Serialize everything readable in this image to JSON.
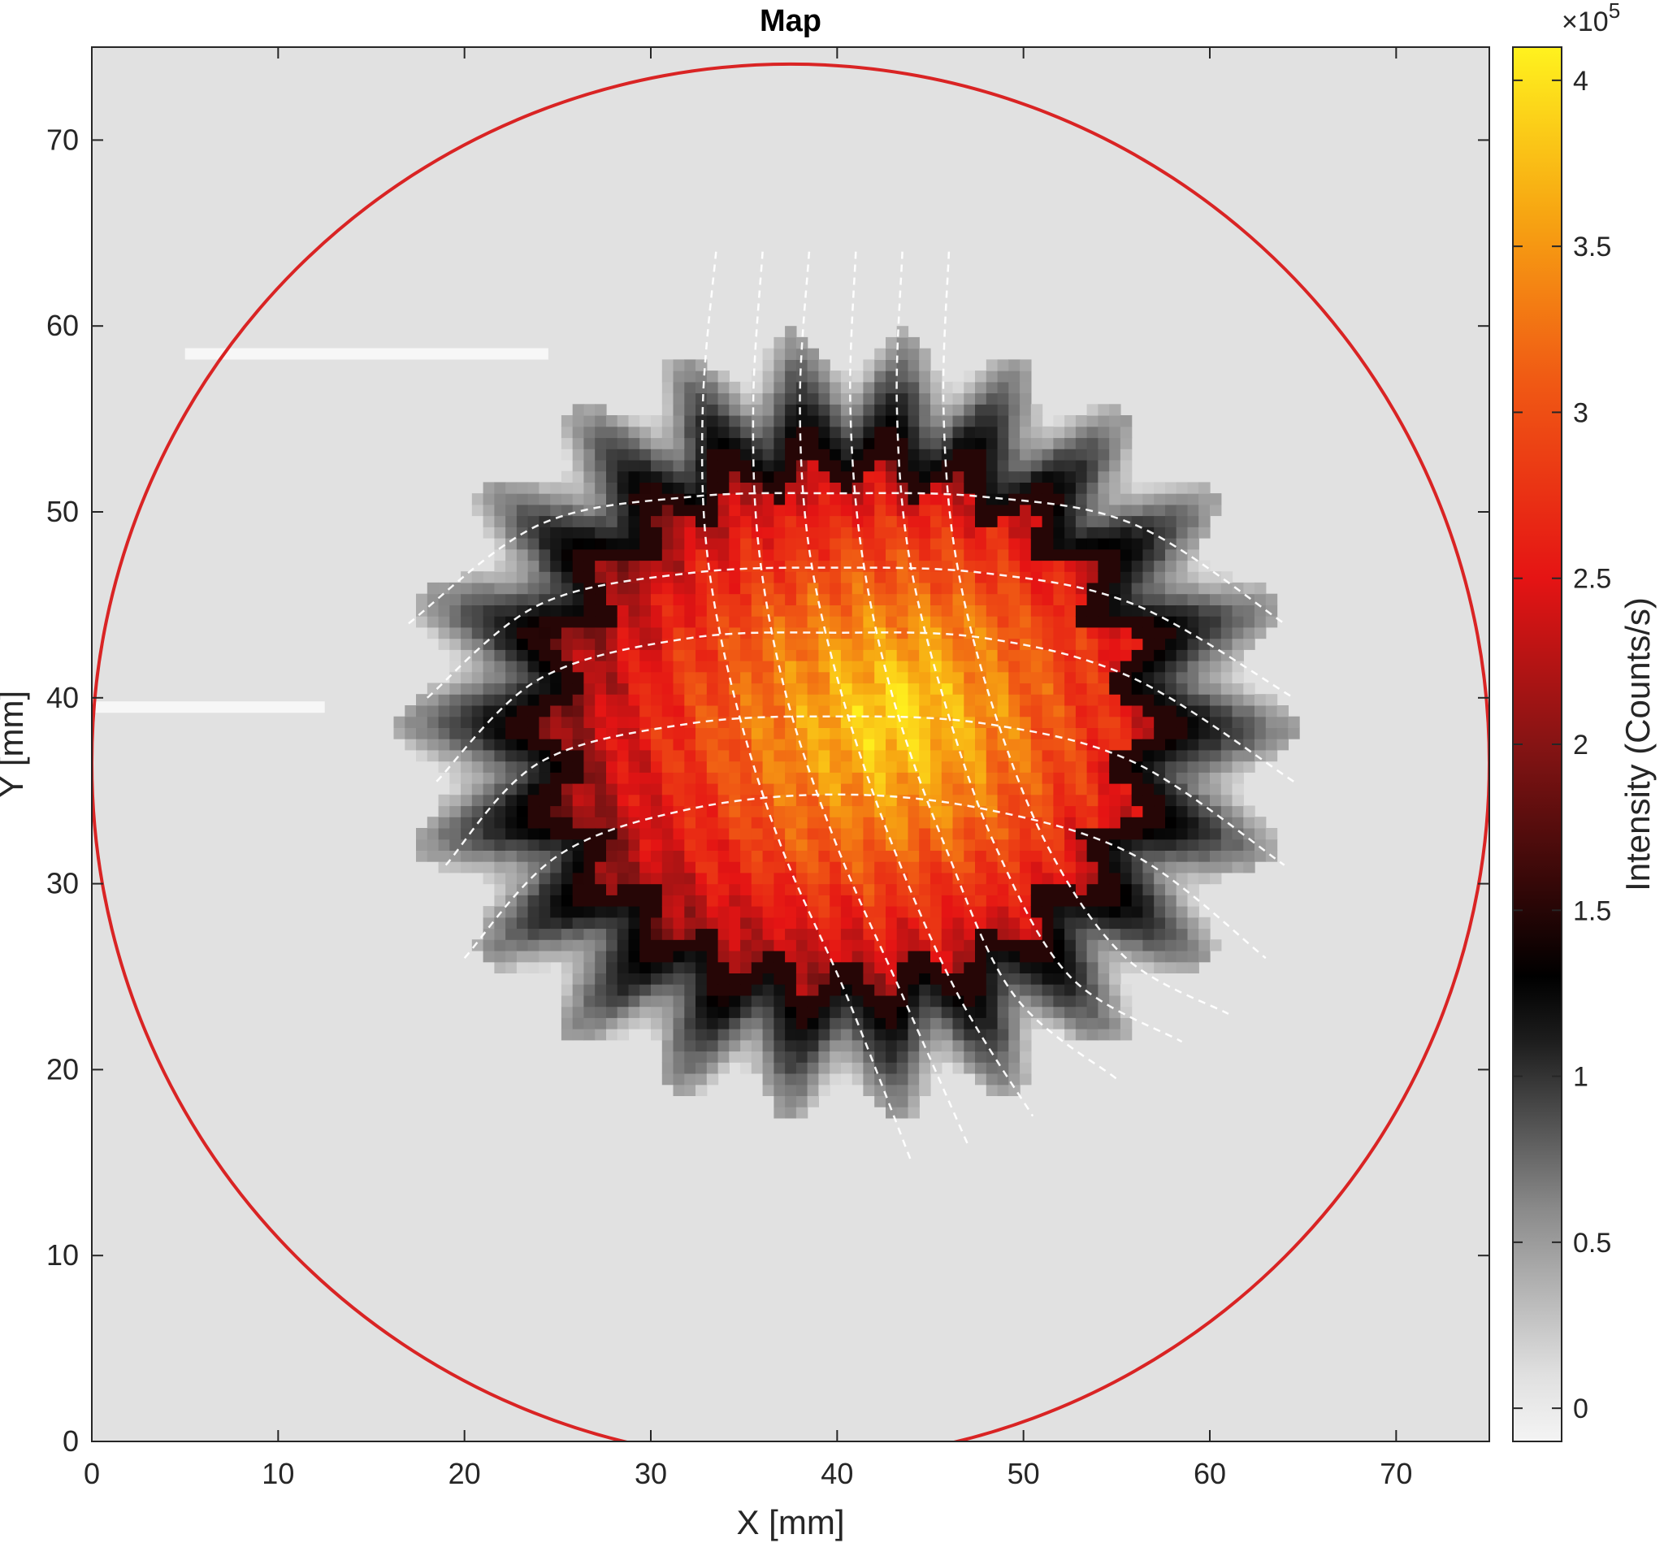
{
  "chart_data": {
    "type": "heatmap",
    "title": "Map",
    "xlabel": "X [mm]",
    "ylabel": "Y [mm]",
    "xlim": [
      0,
      75
    ],
    "ylim": [
      0,
      75
    ],
    "x_ticks": [
      0,
      10,
      20,
      30,
      40,
      50,
      60,
      70
    ],
    "y_ticks": [
      0,
      10,
      20,
      30,
      40,
      50,
      60,
      70
    ],
    "colorbar": {
      "label": "Intensity (Counts/s)",
      "multiplier_base": "×10",
      "multiplier_exponent": "5",
      "range": [
        -0.1,
        4.1
      ],
      "ticks": [
        0,
        0.5,
        1,
        1.5,
        2,
        2.5,
        3,
        3.5,
        4
      ],
      "tick_labels": [
        "0",
        "0.5",
        "1",
        "1.5",
        "2",
        "2.5",
        "3",
        "3.5",
        "4"
      ],
      "colormap": [
        {
          "value": -0.1,
          "color": "#f4f4f4"
        },
        {
          "value": 0.1,
          "color": "#e0e0e0"
        },
        {
          "value": 0.6,
          "color": "#8a8a8a"
        },
        {
          "value": 1.1,
          "color": "#1e1e1e"
        },
        {
          "value": 1.3,
          "color": "#000000"
        },
        {
          "value": 2.0,
          "color": "#861414"
        },
        {
          "value": 2.5,
          "color": "#e51414"
        },
        {
          "value": 3.1,
          "color": "#f05a14"
        },
        {
          "value": 3.6,
          "color": "#f7a612"
        },
        {
          "value": 4.1,
          "color": "#fff21e"
        }
      ]
    },
    "background_level": 0.08,
    "intensity_region": {
      "center": [
        40.5,
        38.5
      ],
      "semi_axis_x": 17,
      "semi_axis_y": 15,
      "peak_value": 4.0,
      "edge_value": 1.3,
      "peak_location": [
        43,
        39
      ]
    },
    "boundary_circle": {
      "center": [
        37.5,
        36.5
      ],
      "radius": 37.5,
      "color": "#d92424",
      "clip_to_axes": true
    },
    "horizontal_bright_streaks": [
      {
        "y": 58.5,
        "x_range": [
          5,
          24.5
        ]
      },
      {
        "y": 39.5,
        "x_range": [
          0,
          12.5
        ]
      }
    ],
    "grid_overlay": {
      "color": "#ffffff",
      "style": "dashed",
      "rows": [
        {
          "x": [
            17.0,
            24.0,
            32.0,
            40.0,
            48.0,
            56.0,
            64.0
          ],
          "y": [
            44.0,
            49.3,
            50.8,
            51.0,
            50.8,
            49.3,
            44.0
          ]
        },
        {
          "x": [
            18.0,
            24.0,
            32.0,
            40.0,
            48.0,
            56.0,
            64.5
          ],
          "y": [
            40.0,
            45.0,
            46.7,
            47.0,
            46.7,
            45.0,
            40.0
          ]
        },
        {
          "x": [
            18.5,
            24.0,
            32.0,
            40.0,
            48.0,
            56.0,
            64.5
          ],
          "y": [
            35.5,
            41.0,
            43.2,
            43.5,
            43.2,
            41.0,
            35.5
          ]
        },
        {
          "x": [
            19.0,
            24.0,
            32.0,
            40.0,
            48.0,
            56.0,
            64.0
          ],
          "y": [
            31.0,
            36.5,
            38.6,
            39.0,
            38.6,
            36.5,
            31.0
          ]
        },
        {
          "x": [
            20.0,
            25.0,
            32.0,
            40.0,
            48.0,
            56.0,
            63.0
          ],
          "y": [
            26.0,
            31.5,
            34.0,
            34.8,
            34.0,
            31.5,
            26.0
          ]
        }
      ],
      "columns": [
        {
          "x": [
            33.5,
            32.8,
            33.0,
            34.5,
            37.0,
            40.5,
            44.0
          ],
          "y": [
            64.0,
            56.0,
            48.0,
            40.0,
            32.0,
            24.0,
            15.0
          ]
        },
        {
          "x": [
            36.0,
            35.5,
            35.8,
            37.3,
            40.0,
            43.5,
            47.0
          ],
          "y": [
            64.0,
            56.0,
            48.0,
            40.0,
            32.0,
            24.0,
            16.0
          ]
        },
        {
          "x": [
            38.5,
            38.0,
            38.5,
            40.3,
            43.0,
            46.5,
            50.5
          ],
          "y": [
            64.0,
            56.0,
            48.0,
            40.0,
            32.0,
            24.0,
            17.5
          ]
        },
        {
          "x": [
            41.0,
            40.7,
            41.3,
            43.0,
            45.8,
            49.5,
            55.0
          ],
          "y": [
            64.0,
            56.0,
            48.0,
            40.0,
            32.0,
            24.0,
            19.5
          ]
        },
        {
          "x": [
            43.5,
            43.2,
            43.8,
            45.7,
            48.5,
            52.5,
            58.5
          ],
          "y": [
            64.0,
            56.0,
            48.0,
            40.0,
            32.0,
            25.0,
            21.5
          ]
        },
        {
          "x": [
            46.0,
            45.7,
            46.3,
            48.2,
            51.3,
            55.5,
            61.0
          ],
          "y": [
            64.0,
            56.0,
            48.0,
            40.0,
            32.0,
            26.0,
            23.0
          ]
        }
      ]
    }
  }
}
